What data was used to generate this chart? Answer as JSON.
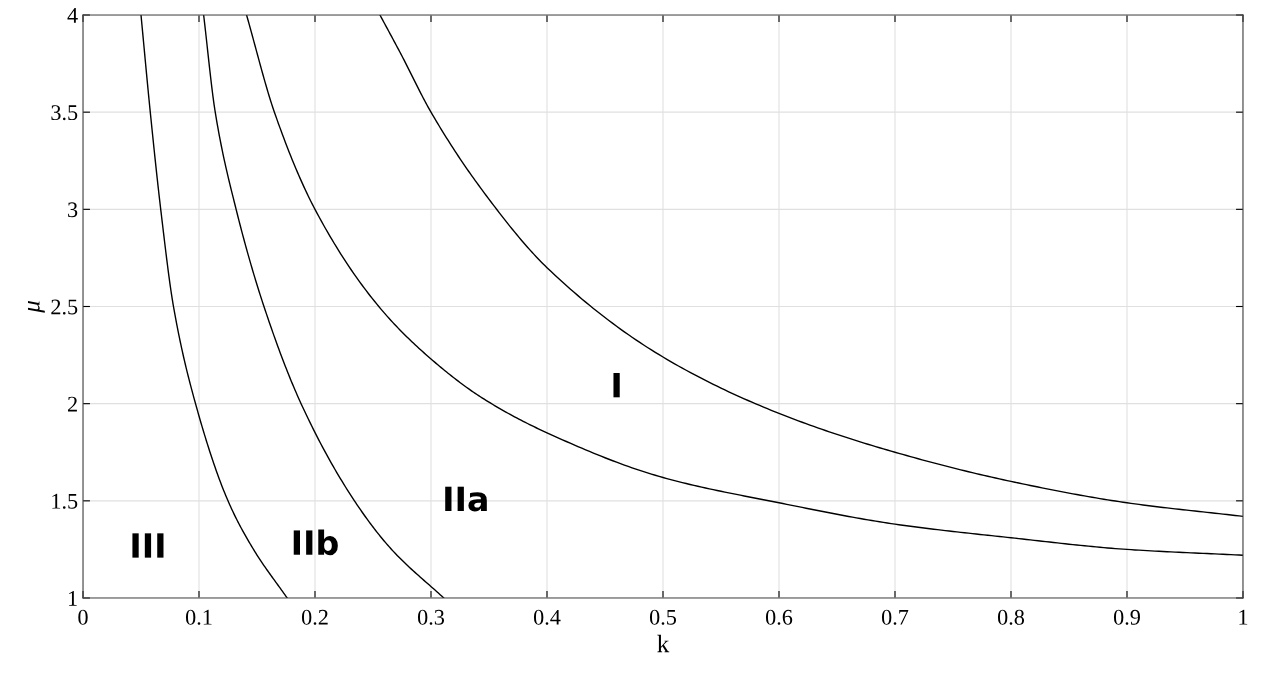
{
  "chart_data": {
    "type": "line",
    "xlabel": "k",
    "ylabel": "μ",
    "xlim": [
      0,
      1
    ],
    "ylim": [
      1,
      4
    ],
    "xticks": [
      0,
      0.1,
      0.2,
      0.3,
      0.4,
      0.5,
      0.6,
      0.7,
      0.8,
      0.9,
      1
    ],
    "yticks": [
      1,
      1.5,
      2,
      2.5,
      3,
      3.5,
      4
    ],
    "grid": true,
    "marker": "none",
    "line_style": "solid",
    "series": [
      {
        "color": "#000000",
        "x": [
          0.05,
          0.058,
          0.067,
          0.078,
          0.097,
          0.125,
          0.147,
          0.176
        ],
        "values": [
          4,
          3.5,
          3,
          2.5,
          2,
          1.5,
          1.25,
          1
        ]
      },
      {
        "color": "#000000",
        "x": [
          0.104,
          0.114,
          0.132,
          0.156,
          0.188,
          0.234,
          0.266,
          0.311
        ],
        "values": [
          4,
          3.5,
          3,
          2.5,
          2,
          1.5,
          1.25,
          1
        ]
      },
      {
        "color": "#000000",
        "x": [
          0.141,
          0.165,
          0.2,
          0.255,
          0.3,
          0.344,
          0.4,
          0.5,
          0.6,
          0.7,
          0.8,
          0.9,
          1
        ],
        "values": [
          4,
          3.5,
          3,
          2.5,
          2.23,
          2.03,
          1.85,
          1.62,
          1.49,
          1.38,
          1.31,
          1.25,
          1.22
        ]
      },
      {
        "color": "#000000",
        "x": [
          0.256,
          0.274,
          0.3,
          0.344,
          0.4,
          0.5,
          0.6,
          0.7,
          0.8,
          0.9,
          1
        ],
        "values": [
          4,
          3.8,
          3.5,
          3.1,
          2.7,
          2.24,
          1.95,
          1.75,
          1.6,
          1.49,
          1.42
        ]
      }
    ],
    "annotations": [
      "III",
      "IIb",
      "IIa",
      "I"
    ]
  }
}
